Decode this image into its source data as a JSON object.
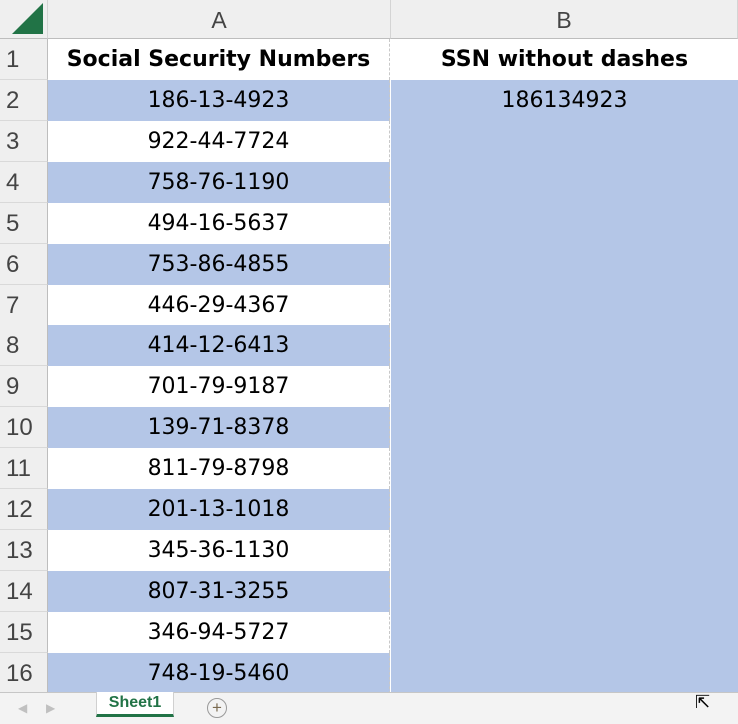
{
  "columns": [
    "A",
    "B"
  ],
  "header": {
    "a": "Social Security Numbers",
    "b": "SSN without dashes"
  },
  "rows": [
    {
      "n": "2",
      "a": "186-13-4923",
      "b": "186134923"
    },
    {
      "n": "3",
      "a": "922-44-7724",
      "b": ""
    },
    {
      "n": "4",
      "a": "758-76-1190",
      "b": ""
    },
    {
      "n": "5",
      "a": "494-16-5637",
      "b": ""
    },
    {
      "n": "6",
      "a": "753-86-4855",
      "b": ""
    },
    {
      "n": "7",
      "a": "446-29-4367",
      "b": ""
    },
    {
      "n": "8",
      "a": "414-12-6413",
      "b": ""
    },
    {
      "n": "9",
      "a": "701-79-9187",
      "b": ""
    },
    {
      "n": "10",
      "a": "139-71-8378",
      "b": ""
    },
    {
      "n": "11",
      "a": "811-79-8798",
      "b": ""
    },
    {
      "n": "12",
      "a": "201-13-1018",
      "b": ""
    },
    {
      "n": "13",
      "a": "345-36-1130",
      "b": ""
    },
    {
      "n": "14",
      "a": "807-31-3255",
      "b": ""
    },
    {
      "n": "15",
      "a": "346-94-5727",
      "b": ""
    },
    {
      "n": "16",
      "a": "748-19-5460",
      "b": ""
    }
  ],
  "sheet_tabs": [
    "Sheet1"
  ],
  "add_sheet_icon": "plus-circle-icon",
  "colors": {
    "band": "#b4c6e7",
    "accent": "#217346"
  }
}
